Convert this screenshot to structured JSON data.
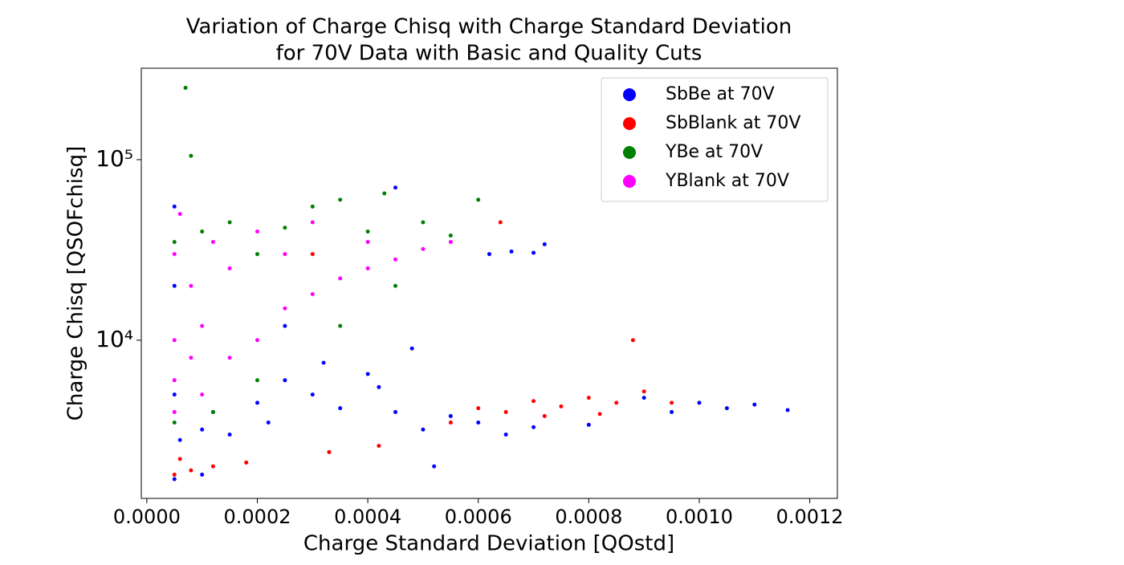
{
  "chart_data": {
    "type": "scatter",
    "title": [
      "Variation of Charge Chisq with Charge Standard Deviation",
      "for 70V Data with Basic and Quality Cuts"
    ],
    "x_label": "Charge Standard Deviation [QOstd]",
    "y_label": "Charge Chisq [QSOFchisq]",
    "xlim": [
      -1e-05,
      0.00125
    ],
    "ylim": [
      1330,
      321000
    ],
    "log_y": true,
    "legend": "upper right",
    "xticks": [
      {
        "value": 0,
        "label": "0.0000"
      },
      {
        "value": 0.0002,
        "label": "0.0002"
      },
      {
        "value": 0.0004,
        "label": "0.0004"
      },
      {
        "value": 0.0006,
        "label": "0.0006"
      },
      {
        "value": 0.0008,
        "label": "0.0008"
      },
      {
        "value": 0.001,
        "label": "0.0010"
      },
      {
        "value": 0.0012,
        "label": "0.0012"
      }
    ],
    "yticks": [
      {
        "value": 10000,
        "label": "10⁴"
      },
      {
        "value": 100000,
        "label": "10⁵"
      }
    ],
    "series": [
      {
        "name": "SbBe at 70V",
        "color": "#0000ff",
        "x": [
          5e-05,
          5e-05,
          5e-05,
          5e-05,
          6e-05,
          0.0001,
          0.00012,
          0.00015,
          0.0002,
          0.00022,
          0.00025,
          0.0003,
          0.00032,
          0.00035,
          0.0004,
          0.00042,
          0.00045,
          0.0005,
          0.00048,
          0.00055,
          0.0006,
          0.00065,
          0.0007,
          0.0008,
          0.0009,
          0.00095,
          0.001,
          0.00105,
          0.0011,
          0.00116,
          0.00062,
          0.00066,
          0.0007,
          0.00072,
          0.00045,
          0.0001,
          0.00025,
          0.00052
        ],
        "values": [
          1700,
          5000,
          20000,
          55000,
          2800,
          3200,
          4000,
          3000,
          4500,
          3500,
          6000,
          5000,
          7500,
          4200,
          6500,
          5500,
          4000,
          3200,
          9000,
          3800,
          3500,
          3000,
          3300,
          3400,
          4800,
          4000,
          4500,
          4200,
          4400,
          4100,
          30000,
          31000,
          30500,
          34000,
          70000,
          1800,
          12000,
          2000
        ]
      },
      {
        "name": "SbBlank at 70V",
        "color": "#ff0000",
        "x": [
          5e-05,
          6e-05,
          8e-05,
          0.00012,
          0.00018,
          0.00055,
          0.0006,
          0.00065,
          0.0007,
          0.00075,
          0.0008,
          0.00085,
          0.0009,
          0.00095,
          0.00072,
          0.00082,
          0.00088,
          0.00064,
          0.0003,
          0.00042,
          0.00033
        ],
        "values": [
          1800,
          2200,
          1900,
          2000,
          2100,
          3500,
          4200,
          4000,
          4600,
          4300,
          4800,
          4500,
          5200,
          4500,
          3800,
          3900,
          10000,
          45000,
          30000,
          2600,
          2400
        ]
      },
      {
        "name": "YBe at 70V",
        "color": "#008000",
        "x": [
          7e-05,
          8e-05,
          5e-05,
          0.0001,
          0.00015,
          0.0002,
          0.0003,
          0.00035,
          0.0004,
          0.00043,
          0.0005,
          0.0006,
          0.00055,
          0.00045,
          0.00035,
          0.0002,
          0.00012,
          5e-05,
          0.00025
        ],
        "values": [
          250000,
          105000,
          35000,
          40000,
          45000,
          30000,
          55000,
          60000,
          40000,
          65000,
          45000,
          60000,
          38000,
          20000,
          12000,
          6000,
          4000,
          3500,
          42000
        ]
      },
      {
        "name": "YBlank at 70V",
        "color": "#ff00ff",
        "x": [
          5e-05,
          5e-05,
          5e-05,
          6e-05,
          8e-05,
          0.0001,
          0.0001,
          0.00012,
          0.00015,
          0.00015,
          0.0002,
          0.0002,
          0.00025,
          0.00025,
          0.0003,
          0.0003,
          0.00035,
          0.0004,
          0.0004,
          0.00045,
          0.0005,
          0.00055,
          5e-05,
          8e-05
        ],
        "values": [
          4000,
          10000,
          30000,
          50000,
          20000,
          5000,
          12000,
          35000,
          8000,
          25000,
          10000,
          40000,
          15000,
          30000,
          18000,
          45000,
          22000,
          25000,
          35000,
          28000,
          32000,
          35000,
          6000,
          8000
        ]
      }
    ]
  }
}
